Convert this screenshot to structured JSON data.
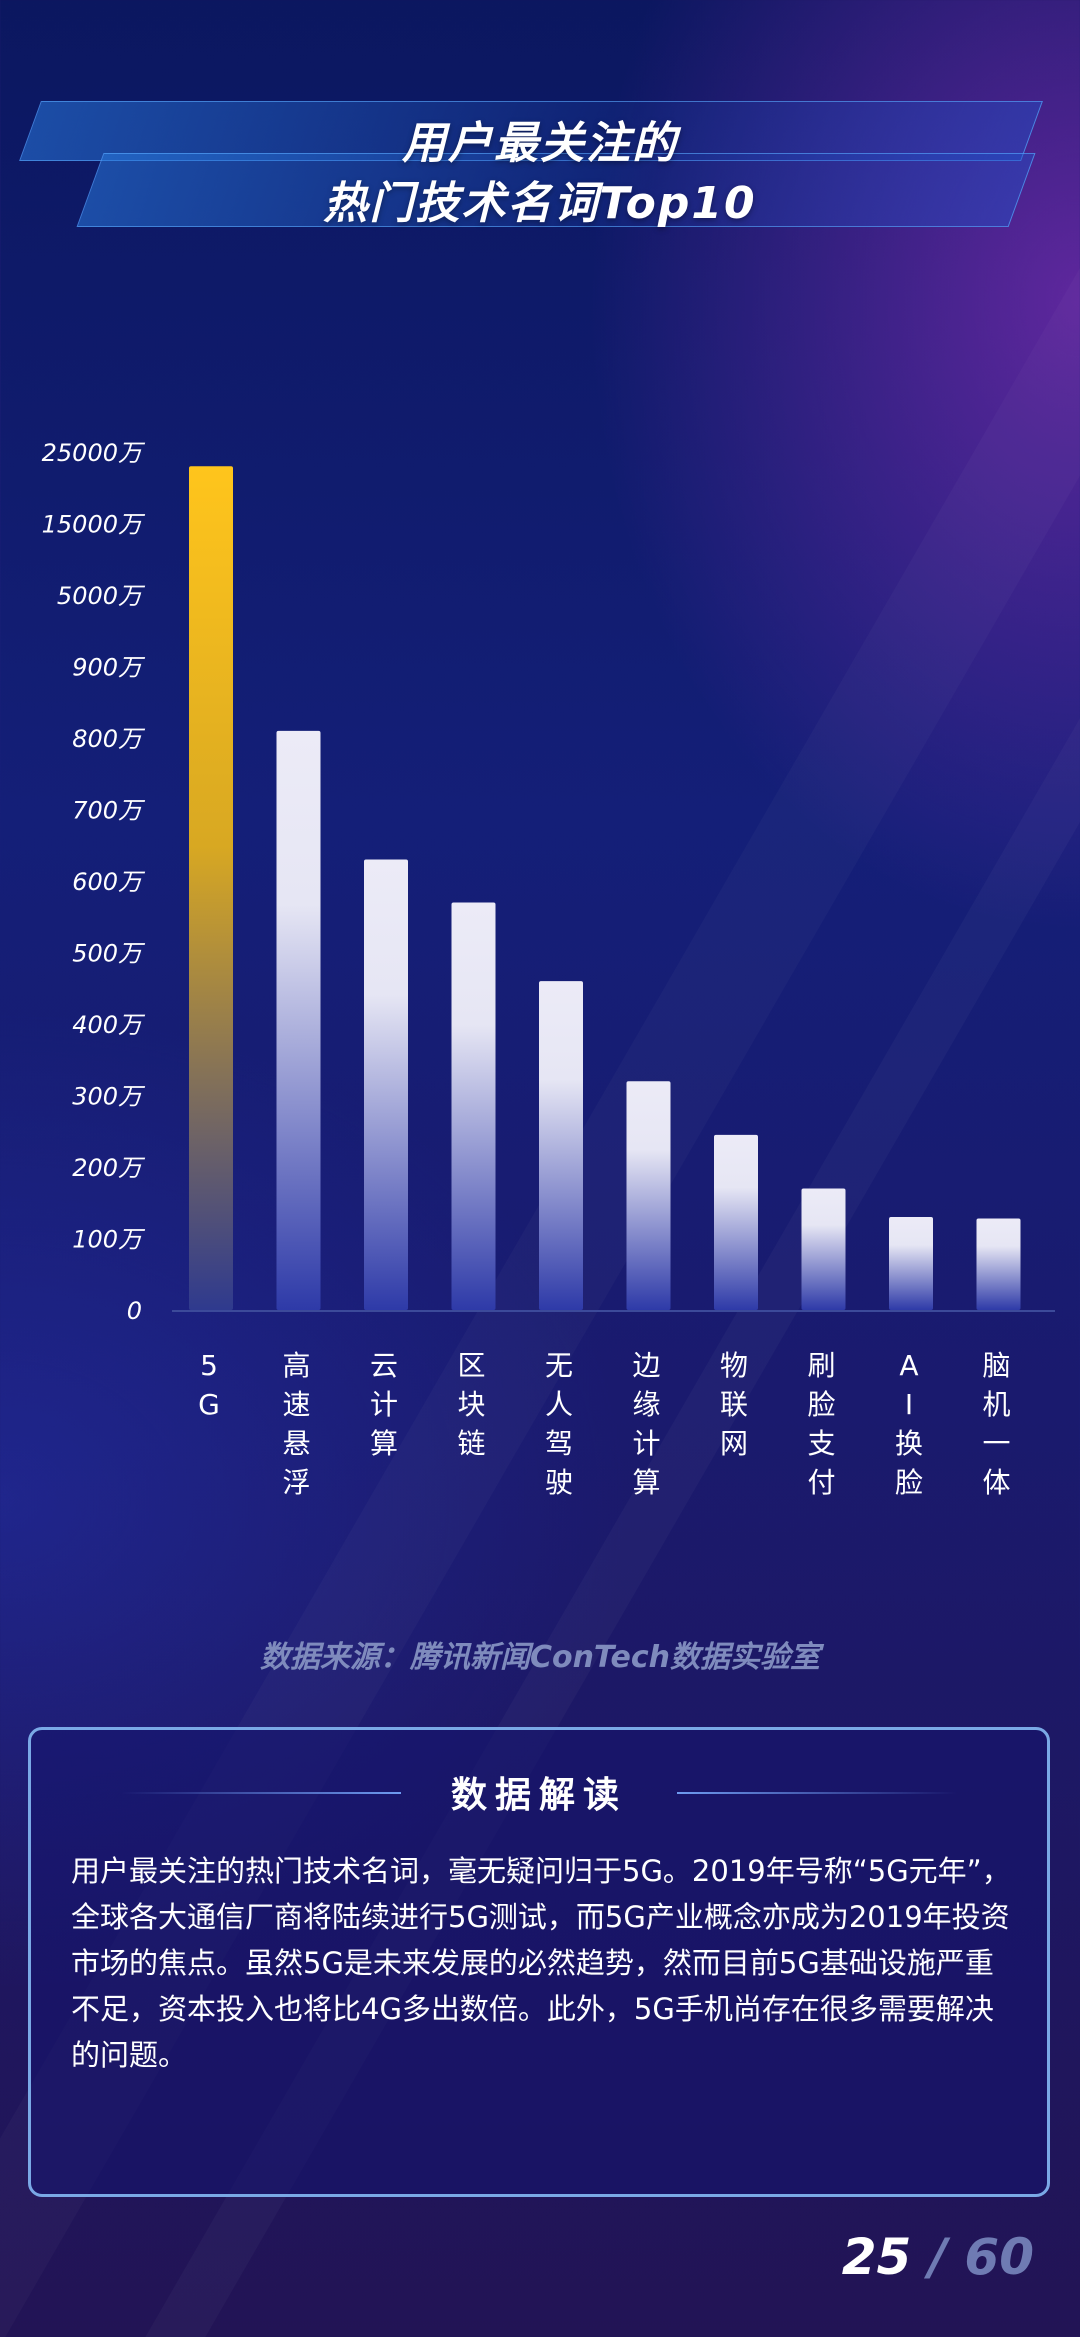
{
  "title": {
    "line1": "用户最关注的",
    "line2": "热门技术名词Top10"
  },
  "chart_data": {
    "type": "bar",
    "categories": [
      "5G",
      "高速悬浮",
      "云计算",
      "区块链",
      "无人驾驶",
      "边缘计算",
      "物联网",
      "刷脸支付",
      "AI换脸",
      "脑机一体"
    ],
    "values": [
      23000,
      810,
      630,
      570,
      460,
      320,
      245,
      170,
      130,
      128
    ],
    "y_ticks": [
      0,
      100,
      200,
      300,
      400,
      500,
      600,
      700,
      800,
      900,
      5000,
      15000,
      25000
    ],
    "y_tick_labels": [
      "0",
      "100万",
      "200万",
      "300万",
      "400万",
      "500万",
      "600万",
      "700万",
      "800万",
      "900万",
      "5000万",
      "15000万",
      "25000万"
    ],
    "unit": "万",
    "axis_scale": "broken/non-linear",
    "xlabel": "",
    "ylabel": "",
    "colors": {
      "highlight": "#f7c31e",
      "bars": "#e6e6f4",
      "bar_fade": "#3443b0"
    }
  },
  "source": "数据来源：腾讯新闻ConTech数据实验室",
  "analysis": {
    "title": "数据解读",
    "text": "用户最关注的热门技术名词，毫无疑问归于5G。2019年号称“5G元年”，全球各大通信厂商将陆续进行5G测试，而5G产业概念亦成为2019年投资市场的焦点。虽然5G是未来发展的必然趋势，然而目前5G基础设施严重不足，资本投入也将比4G多出数倍。此外，5G手机尚存在很多需要解决的问题。"
  },
  "page": {
    "current": "25",
    "separator": "/",
    "total": "60"
  }
}
